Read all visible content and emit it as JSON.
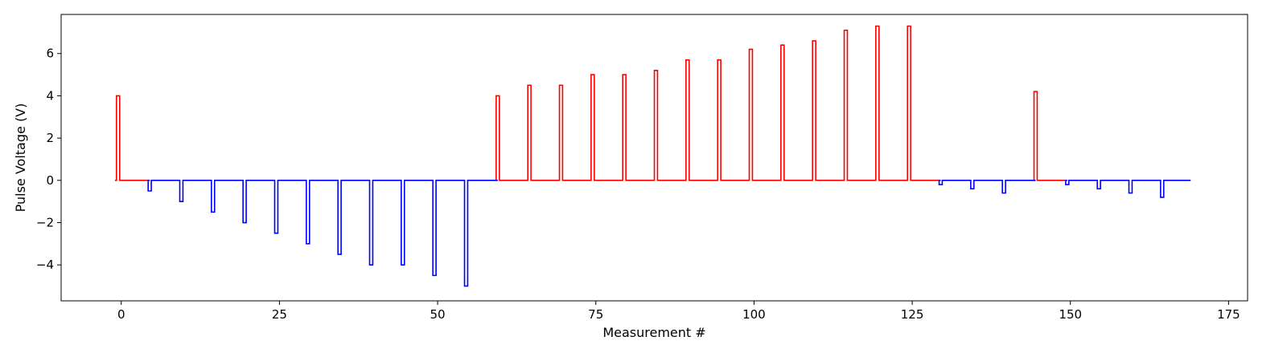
{
  "chart_data": {
    "type": "line",
    "title": "",
    "xlabel": "Measurement #",
    "ylabel": "Pulse Voltage (V)",
    "xlim": [
      -9.5,
      178
    ],
    "ylim": [
      -5.7,
      7.85
    ],
    "xticks": [
      0,
      25,
      50,
      75,
      100,
      125,
      150,
      175
    ],
    "yticks": [
      -4,
      -2,
      0,
      2,
      4,
      6
    ],
    "grid": false,
    "legend": "none",
    "x_start": -1,
    "x_end": 169,
    "pulse_width": 0.5,
    "series": [
      {
        "color": "#ff0000",
        "segments": [
          {
            "range": [
              -1,
              4.5
            ],
            "pulses": [
              {
                "x": -0.75,
                "v": 4.0
              }
            ]
          },
          {
            "range": [
              59.5,
              129.5
            ],
            "pulses": [
              {
                "x": 59.25,
                "v": 4.0
              },
              {
                "x": 64.25,
                "v": 4.5
              },
              {
                "x": 69.25,
                "v": 4.5
              },
              {
                "x": 74.25,
                "v": 5.0
              },
              {
                "x": 79.25,
                "v": 5.0
              },
              {
                "x": 84.25,
                "v": 5.2
              },
              {
                "x": 89.25,
                "v": 5.7
              },
              {
                "x": 94.25,
                "v": 5.7
              },
              {
                "x": 99.25,
                "v": 6.2
              },
              {
                "x": 104.25,
                "v": 6.4
              },
              {
                "x": 109.25,
                "v": 6.6
              },
              {
                "x": 114.25,
                "v": 7.1
              },
              {
                "x": 119.25,
                "v": 7.3
              },
              {
                "x": 124.25,
                "v": 7.3
              }
            ]
          },
          {
            "range": [
              144.5,
              149.5
            ],
            "pulses": [
              {
                "x": 144.25,
                "v": 4.2
              }
            ]
          }
        ]
      },
      {
        "color": "#0000ff",
        "segments": [
          {
            "range": [
              4.5,
              59.5
            ],
            "pulses": [
              {
                "x": 4.25,
                "v": -0.5
              },
              {
                "x": 9.25,
                "v": -1.0
              },
              {
                "x": 14.25,
                "v": -1.5
              },
              {
                "x": 19.25,
                "v": -2.0
              },
              {
                "x": 24.25,
                "v": -2.5
              },
              {
                "x": 29.25,
                "v": -3.0
              },
              {
                "x": 34.25,
                "v": -3.5
              },
              {
                "x": 39.25,
                "v": -4.0
              },
              {
                "x": 44.25,
                "v": -4.0
              },
              {
                "x": 49.25,
                "v": -4.5
              },
              {
                "x": 54.25,
                "v": -5.0
              }
            ]
          },
          {
            "range": [
              129.5,
              144.5
            ],
            "pulses": [
              {
                "x": 129.25,
                "v": -0.2
              },
              {
                "x": 134.25,
                "v": -0.4
              },
              {
                "x": 139.25,
                "v": -0.6
              }
            ]
          },
          {
            "range": [
              149.5,
              169
            ],
            "pulses": [
              {
                "x": 149.25,
                "v": -0.2
              },
              {
                "x": 154.25,
                "v": -0.4
              },
              {
                "x": 159.25,
                "v": -0.6
              },
              {
                "x": 164.25,
                "v": -0.8
              }
            ]
          }
        ]
      }
    ]
  }
}
